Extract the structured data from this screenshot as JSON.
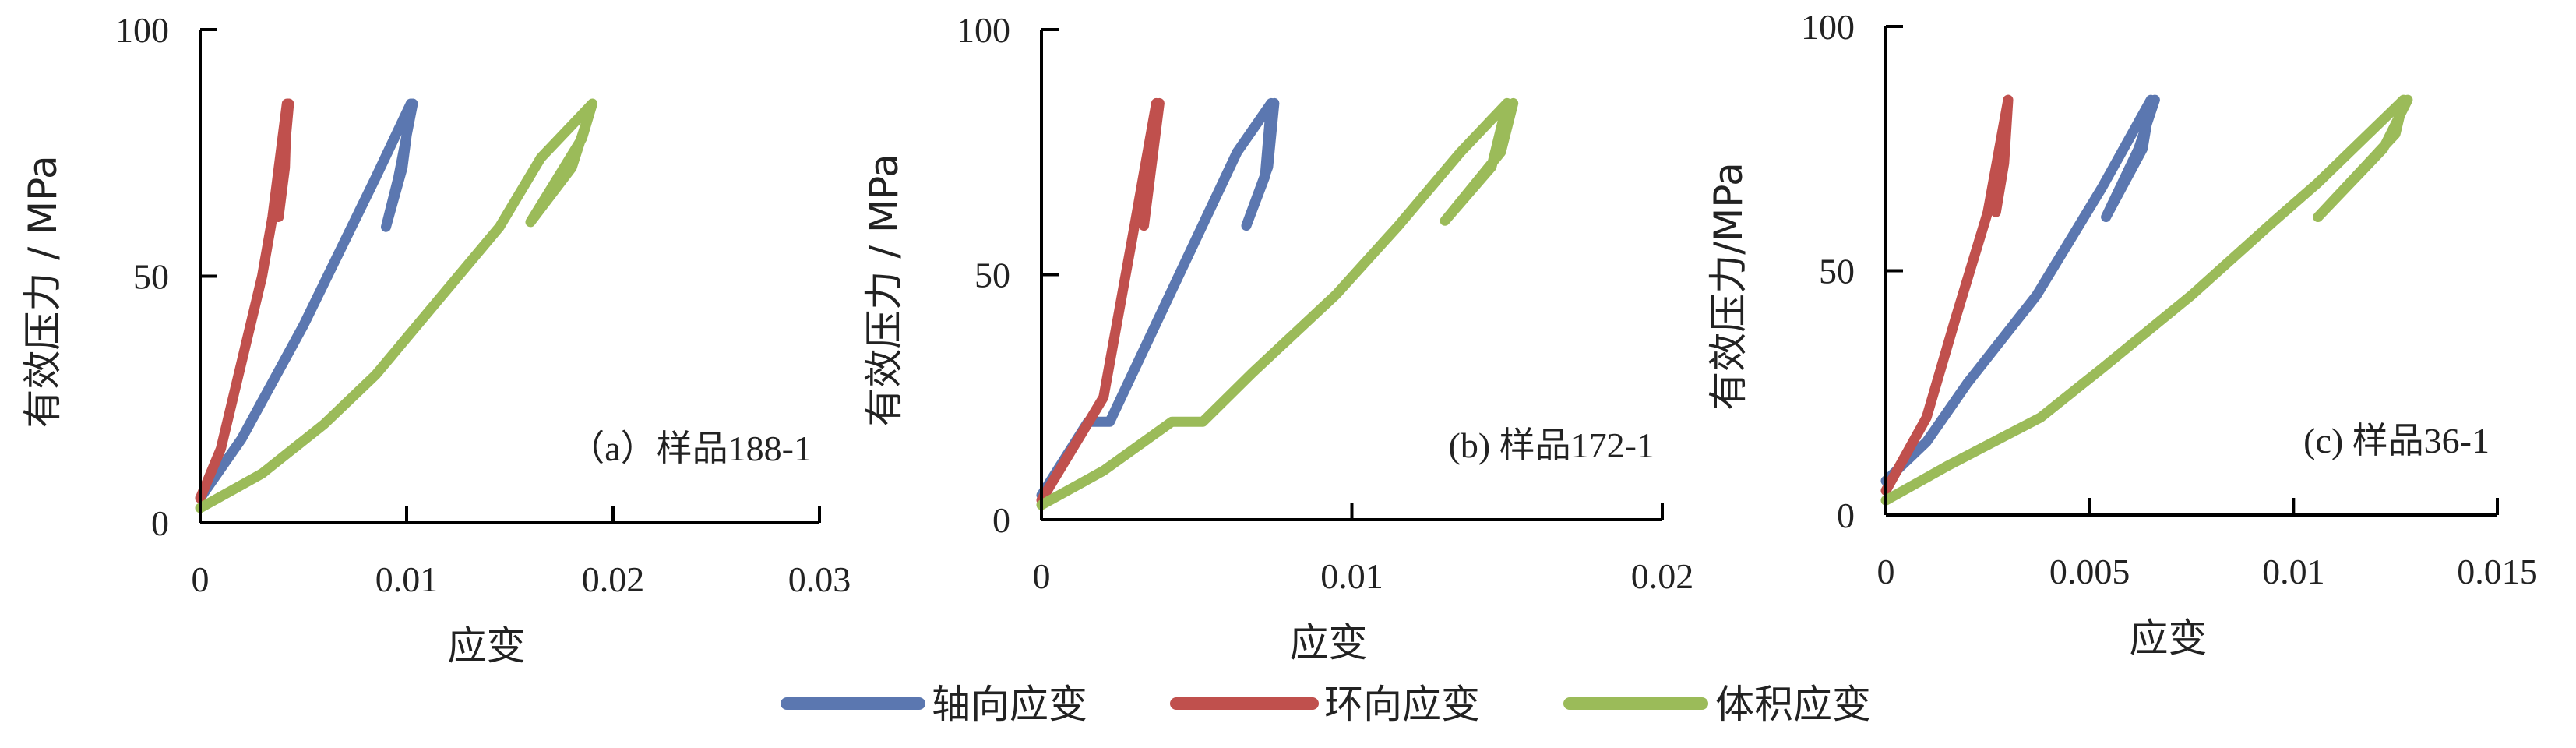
{
  "colors": {
    "axial": "#5b77b0",
    "hoop": "#c0504d",
    "volume": "#9bbb59"
  },
  "legend": [
    {
      "key": "axial",
      "label": "轴向应变"
    },
    {
      "key": "hoop",
      "label": "环向应变"
    },
    {
      "key": "volume",
      "label": "体积应变"
    }
  ],
  "chart_data": [
    {
      "type": "line",
      "annotation": "（a）样品188-1",
      "xlabel": "应变",
      "ylabel": "有效压力 / MPa",
      "xlim": [
        0,
        0.03
      ],
      "ylim": [
        0,
        100
      ],
      "xticks": [
        "0",
        "0.01",
        "0.02",
        "0.03"
      ],
      "xtick_values": [
        0,
        0.01,
        0.02,
        0.03
      ],
      "yticks": [
        "0",
        "50",
        "100"
      ],
      "ytick_values": [
        0,
        50,
        100
      ],
      "series": [
        {
          "key": "axial",
          "x": [
            0,
            0.002,
            0.005,
            0.0085,
            0.0102,
            0.0098,
            0.009,
            0.0096,
            0.0103
          ],
          "y": [
            5,
            17,
            40,
            70,
            85,
            72,
            60,
            70,
            85
          ]
        },
        {
          "key": "hoop",
          "x": [
            0,
            0.001,
            0.003,
            0.0035,
            0.0042,
            0.0041,
            0.0038,
            0.0043
          ],
          "y": [
            5,
            15,
            50,
            62,
            85,
            72,
            62,
            85
          ]
        },
        {
          "key": "volume",
          "x": [
            0,
            0.003,
            0.006,
            0.0085,
            0.0115,
            0.0145,
            0.0165,
            0.019,
            0.018,
            0.016,
            0.0185,
            0.019
          ],
          "y": [
            3,
            10,
            20,
            30,
            45,
            60,
            74,
            85,
            72,
            61,
            78,
            85
          ]
        }
      ]
    },
    {
      "type": "line",
      "annotation": "(b) 样品172-1",
      "xlabel": "应变",
      "ylabel": "有效压力 / MPa",
      "xlim": [
        0,
        0.02
      ],
      "ylim": [
        0,
        100
      ],
      "xticks": [
        "0",
        "0.01",
        "0.02"
      ],
      "xtick_values": [
        0,
        0.01,
        0.02
      ],
      "yticks": [
        "0",
        "50",
        "100"
      ],
      "ytick_values": [
        0,
        50,
        100
      ],
      "series": [
        {
          "key": "axial",
          "x": [
            0,
            0.0015,
            0.0022,
            0.0063,
            0.0074,
            0.0072,
            0.0066,
            0.0073,
            0.0075
          ],
          "y": [
            5,
            20,
            20,
            75,
            85,
            70,
            60,
            72,
            85
          ]
        },
        {
          "key": "hoop",
          "x": [
            0,
            0.002,
            0.003,
            0.0037,
            0.0035,
            0.0033,
            0.0038
          ],
          "y": [
            4,
            25,
            60,
            85,
            70,
            60,
            85
          ]
        },
        {
          "key": "volume",
          "x": [
            0,
            0.002,
            0.0042,
            0.0052,
            0.0068,
            0.0095,
            0.0115,
            0.0135,
            0.015,
            0.0145,
            0.013,
            0.0148,
            0.0152
          ],
          "y": [
            3,
            10,
            20,
            20,
            30,
            46,
            60,
            75,
            85,
            72,
            61,
            75,
            85
          ]
        }
      ]
    },
    {
      "type": "line",
      "annotation": "(c) 样品36-1",
      "xlabel": "应变",
      "ylabel": "有效压力/MPa",
      "xlim": [
        0,
        0.015
      ],
      "ylim": [
        0,
        100
      ],
      "xticks": [
        "0",
        "0.005",
        "0.01",
        "0.015"
      ],
      "xtick_values": [
        0,
        0.005,
        0.01,
        0.015
      ],
      "yticks": [
        "0",
        "50",
        "100"
      ],
      "ytick_values": [
        0,
        50,
        100
      ],
      "series": [
        {
          "key": "axial",
          "x": [
            0,
            0.001,
            0.002,
            0.0037,
            0.0053,
            0.0065,
            0.0063,
            0.0054,
            0.0062,
            0.0066
          ],
          "y": [
            7,
            15,
            27,
            45,
            67,
            85,
            75,
            61,
            75,
            85
          ]
        },
        {
          "key": "hoop",
          "x": [
            0,
            0.001,
            0.0017,
            0.0025,
            0.003,
            0.0029,
            0.0027,
            0.003
          ],
          "y": [
            5,
            20,
            40,
            62,
            85,
            72,
            62,
            85
          ]
        },
        {
          "key": "volume",
          "x": [
            0,
            0.0015,
            0.0038,
            0.0053,
            0.0075,
            0.0095,
            0.0106,
            0.0127,
            0.0125,
            0.0106,
            0.0122,
            0.0128
          ],
          "y": [
            3,
            10,
            20,
            30,
            45,
            60,
            68,
            85,
            78,
            61,
            75,
            85
          ]
        }
      ]
    }
  ]
}
